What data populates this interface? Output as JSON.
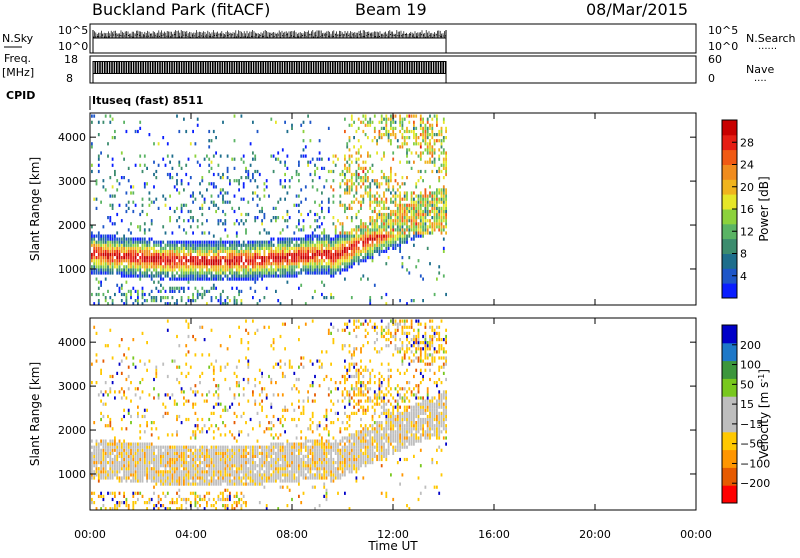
{
  "header": {
    "station": "Buckland Park (fitACF)",
    "beam": "Beam 19",
    "date": "08/Mar/2015"
  },
  "summary": {
    "nsky_label": "N.Sky",
    "nsearch_label": "N.Search",
    "count_ticks": [
      "10^5",
      "10^0"
    ],
    "freq_label": "Freq.",
    "freq_unit": "[MHz]",
    "freq_ticks": [
      "18",
      "8"
    ],
    "nave_label": "Nave",
    "nave_ticks": [
      "60",
      "0"
    ],
    "cpid_label": "CPID",
    "cpid_value": "Ituseq (fast) 8511",
    "dotted": "......",
    "dotted_short": "...."
  },
  "colors": {
    "power": [
      "#0a1eff",
      "#1e56c8",
      "#1e6e8c",
      "#3c8c6e",
      "#5ab464",
      "#8cd23c",
      "#e6e628",
      "#f0b41e",
      "#f08c1e",
      "#f05a14",
      "#e61e14",
      "#c80000"
    ],
    "velocity": [
      "#ff0000",
      "#e65a00",
      "#ff9600",
      "#ffc800",
      "#bebebe",
      "#bebebe",
      "#78c81e",
      "#3c963c",
      "#1e78c8",
      "#0000c8"
    ]
  },
  "chart_data": [
    {
      "type": "heatmap",
      "title": "Power",
      "xlabel": "Time UT",
      "ylabel": "Slant Range [km]",
      "xlim_hours": [
        0,
        24
      ],
      "data_end_hours": 14.1,
      "ylim_km": [
        180,
        4550
      ],
      "x_ticks": [
        "00:00",
        "04:00",
        "08:00",
        "12:00",
        "16:00",
        "20:00",
        "00:00"
      ],
      "y_ticks": [
        1000,
        2000,
        3000,
        4000
      ],
      "colorbar": {
        "label": "Power [dB]",
        "ticks": [
          4,
          8,
          12,
          16,
          20,
          24,
          28
        ]
      },
      "grid": false
    },
    {
      "type": "heatmap",
      "title": "Velocity",
      "xlabel": "Time UT",
      "ylabel": "Slant Range [km]",
      "xlim_hours": [
        0,
        24
      ],
      "data_end_hours": 14.1,
      "ylim_km": [
        180,
        4550
      ],
      "x_ticks": [
        "00:00",
        "04:00",
        "08:00",
        "12:00",
        "16:00",
        "20:00",
        "00:00"
      ],
      "y_ticks": [
        1000,
        2000,
        3000,
        4000
      ],
      "colorbar": {
        "label": "Velocity [m s^-1]",
        "ticks": [
          200,
          100,
          50,
          15,
          -15,
          -50,
          -100,
          -200
        ]
      },
      "grid": false
    }
  ]
}
